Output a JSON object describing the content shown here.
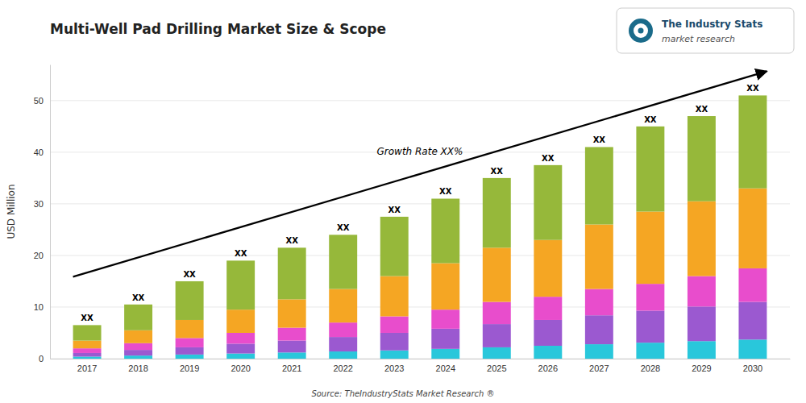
{
  "chart_data": {
    "type": "bar",
    "stacked": true,
    "title": "Multi-Well Pad Drilling Market Size & Scope",
    "ylabel": "USD Million",
    "categories": [
      "2017",
      "2018",
      "2019",
      "2020",
      "2021",
      "2022",
      "2023",
      "2024",
      "2025",
      "2026",
      "2027",
      "2028",
      "2029",
      "2030"
    ],
    "series": [
      {
        "color": "#29c7db",
        "values": [
          0.4,
          0.6,
          0.8,
          1.0,
          1.2,
          1.4,
          1.6,
          1.9,
          2.2,
          2.5,
          2.8,
          3.1,
          3.4,
          3.7
        ]
      },
      {
        "color": "#9b59d0",
        "values": [
          0.7,
          1.1,
          1.4,
          1.9,
          2.3,
          2.8,
          3.4,
          3.9,
          4.5,
          5.0,
          5.6,
          6.2,
          6.7,
          7.3
        ]
      },
      {
        "color": "#e84dcc",
        "values": [
          0.9,
          1.3,
          1.8,
          2.1,
          2.5,
          2.8,
          3.2,
          3.7,
          4.3,
          4.5,
          5.1,
          5.2,
          5.9,
          6.5
        ]
      },
      {
        "color": "#f5a623",
        "values": [
          1.5,
          2.5,
          3.5,
          4.5,
          5.5,
          6.5,
          7.8,
          9.0,
          10.5,
          11.0,
          12.5,
          14.0,
          14.5,
          15.5
        ]
      },
      {
        "color": "#96b83a",
        "values": [
          3.0,
          5.0,
          7.5,
          9.5,
          10.0,
          10.5,
          11.5,
          12.5,
          13.5,
          14.5,
          15.0,
          16.5,
          16.5,
          18.0
        ]
      }
    ],
    "ylim": [
      0,
      57
    ],
    "yticks": [
      0,
      10,
      20,
      30,
      40,
      50
    ],
    "grid": true,
    "bar_labels": [
      "XX",
      "XX",
      "XX",
      "XX",
      "XX",
      "XX",
      "XX",
      "XX",
      "XX",
      "XX",
      "XX",
      "XX",
      "XX",
      "XX"
    ],
    "annotations": [
      "Growth Rate XX%"
    ],
    "source": "Source: TheIndustryStats Market Research ®",
    "logo": [
      "The Industry Stats",
      "market research"
    ]
  }
}
